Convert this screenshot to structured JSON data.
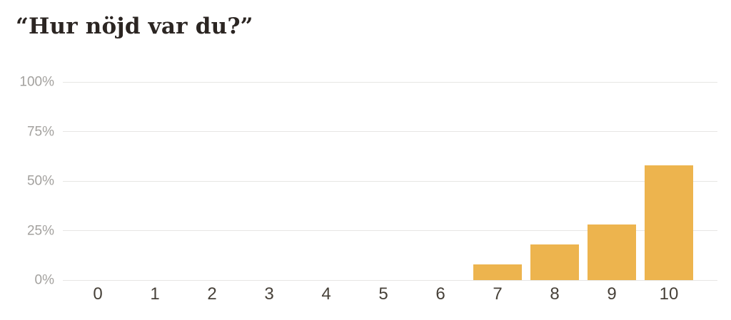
{
  "header": {
    "title": "“Hur nöjd var du?”"
  },
  "chart_data": {
    "type": "bar",
    "title": "“Hur nöjd var du?”",
    "categories": [
      "0",
      "1",
      "2",
      "3",
      "4",
      "5",
      "6",
      "7",
      "8",
      "9",
      "10"
    ],
    "values": [
      0,
      0,
      0,
      0,
      0,
      0,
      0,
      8,
      18,
      28,
      58
    ],
    "unit": "%",
    "xlabel": "",
    "ylabel": "",
    "ylim": [
      0,
      100
    ],
    "ytick_values": [
      0,
      25,
      50,
      75,
      100
    ],
    "ytick_labels": [
      "0%",
      "25%",
      "50%",
      "75%",
      "100%"
    ],
    "grid": "horizontal",
    "legend": "none",
    "colors": {
      "bar": "#EDB44E",
      "grid": "#E7E6E4",
      "y_label": "#A3A19E",
      "x_label": "#474139",
      "title": "#2B2522",
      "background": "#FFFFFF"
    }
  }
}
